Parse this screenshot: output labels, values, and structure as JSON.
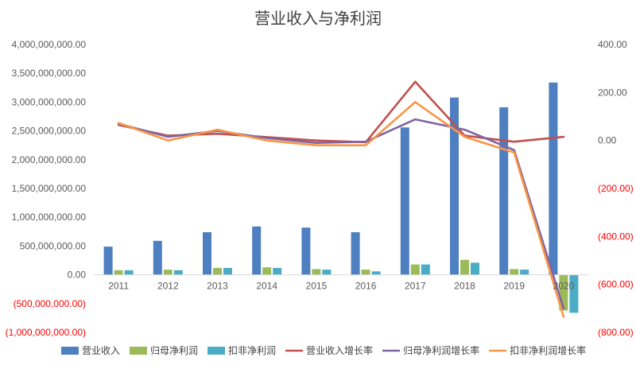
{
  "chart_data": {
    "type": "bar",
    "title": "营业收入与净利润",
    "categories": [
      "2011",
      "2012",
      "2013",
      "2014",
      "2015",
      "2016",
      "2017",
      "2018",
      "2019",
      "2020"
    ],
    "bar_series": [
      {
        "name": "营业收入",
        "color": "#4e7fc0",
        "values": [
          490000000,
          590000000,
          740000000,
          840000000,
          820000000,
          740000000,
          2560000000,
          3080000000,
          2910000000,
          3340000000
        ]
      },
      {
        "name": "归母净利润",
        "color": "#9bbb59",
        "values": [
          80000000,
          90000000,
          120000000,
          130000000,
          100000000,
          90000000,
          180000000,
          260000000,
          100000000,
          -620000000
        ]
      },
      {
        "name": "扣非净利润",
        "color": "#4bacc6",
        "values": [
          80000000,
          80000000,
          120000000,
          120000000,
          90000000,
          60000000,
          180000000,
          210000000,
          90000000,
          -660000000
        ]
      }
    ],
    "line_series": [
      {
        "name": "营业收入增长率",
        "color": "#c0504d",
        "values": [
          65,
          20,
          28,
          14,
          0,
          -7,
          245,
          20,
          -5,
          15
        ]
      },
      {
        "name": "归母净利润增长率",
        "color": "#8064a2",
        "values": [
          70,
          15,
          40,
          10,
          -10,
          -5,
          88,
          45,
          -40,
          -700
        ]
      },
      {
        "name": "扣非净利润增长率",
        "color": "#f79646",
        "values": [
          73,
          0,
          45,
          0,
          -20,
          -20,
          160,
          15,
          -50,
          -735
        ]
      }
    ],
    "y_left": {
      "min": -1000000000,
      "max": 4000000000,
      "step": 500000000,
      "tick_labels": [
        "(1,000,000,000.00)",
        "(500,000,000.00)",
        "0.00",
        "500,000,000.00",
        "1,000,000,000.00",
        "1,500,000,000.00",
        "2,000,000,000.00",
        "2,500,000,000.00",
        "3,000,000,000.00",
        "3,500,000,000.00",
        "4,000,000,000.00"
      ]
    },
    "y_right": {
      "min": -800,
      "max": 400,
      "step": 200,
      "tick_labels": [
        "(800.00)",
        "(600.00)",
        "(400.00)",
        "(200.00)",
        "0.00",
        "200.00",
        "400.00"
      ]
    },
    "negative_label_color": "#ff0000",
    "axis_label_color": "#595959",
    "legend_position": "bottom",
    "grid": false
  }
}
